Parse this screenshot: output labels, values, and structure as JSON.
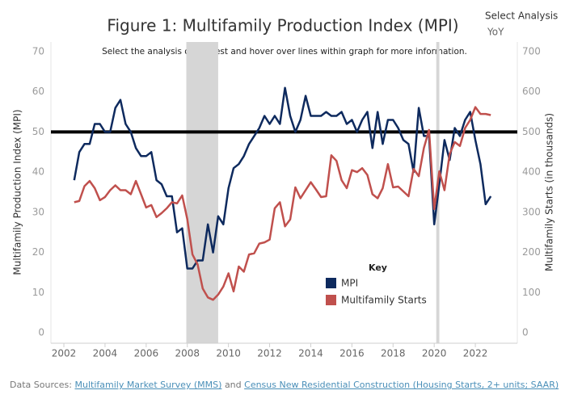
{
  "controls": {
    "label": "Select Analysis",
    "value": "YoY"
  },
  "chart_data": {
    "type": "line",
    "title": "Figure 1: Multifamily Production Index (MPI)",
    "subtitle": "Select the analysis of interest and hover over lines within graph for more information.",
    "y_label": "Multifamily Production Index (MPI)",
    "y2_label": "Multifamily Starts (in thousands)",
    "legend_title": "Key",
    "xlim": [
      2001.37,
      2024.04
    ],
    "xticks": [
      2002,
      2004,
      2006,
      2008,
      2010,
      2012,
      2014,
      2016,
      2018,
      2020,
      2022
    ],
    "ylim": [
      0,
      70
    ],
    "yticks": [
      0,
      10,
      20,
      30,
      40,
      50,
      60,
      70
    ],
    "y2lim": [
      0,
      700
    ],
    "y2ticks": [
      0,
      100,
      200,
      300,
      400,
      500,
      600,
      700
    ],
    "reference_line": 50,
    "shaded_ranges": [
      [
        2007.95,
        2009.5
      ],
      [
        2020.1,
        2020.25
      ]
    ],
    "x": [
      2002.5,
      2002.75,
      2003,
      2003.25,
      2003.5,
      2003.75,
      2004,
      2004.25,
      2004.5,
      2004.75,
      2005,
      2005.25,
      2005.5,
      2005.75,
      2006,
      2006.25,
      2006.5,
      2006.75,
      2007,
      2007.25,
      2007.5,
      2007.75,
      2008,
      2008.25,
      2008.5,
      2008.75,
      2009,
      2009.25,
      2009.5,
      2009.75,
      2010,
      2010.25,
      2010.5,
      2010.75,
      2011,
      2011.25,
      2011.5,
      2011.75,
      2012,
      2012.25,
      2012.5,
      2012.75,
      2013,
      2013.25,
      2013.5,
      2013.75,
      2014,
      2014.25,
      2014.5,
      2014.75,
      2015,
      2015.25,
      2015.5,
      2015.75,
      2016,
      2016.25,
      2016.5,
      2016.75,
      2017,
      2017.25,
      2017.5,
      2017.75,
      2018,
      2018.25,
      2018.5,
      2018.75,
      2019,
      2019.25,
      2019.5,
      2019.75,
      2020,
      2020.25,
      2020.5,
      2020.75,
      2021,
      2021.25,
      2021.5,
      2021.75,
      2022,
      2022.25,
      2022.5,
      2022.75
    ],
    "series": [
      {
        "name": "MPI",
        "color": "#0e2a5e",
        "axis": "y",
        "values": [
          38,
          45,
          47,
          47,
          52,
          52,
          50,
          50,
          56,
          58,
          52,
          50,
          46,
          44,
          44,
          45,
          38,
          37,
          34,
          34,
          25,
          26,
          16,
          16,
          18,
          18,
          27,
          20,
          29,
          27,
          36,
          41,
          42,
          44,
          47,
          49,
          51,
          54,
          52,
          54,
          52,
          61,
          54,
          50,
          53,
          59,
          54,
          54,
          54,
          55,
          54,
          54,
          55,
          52,
          53,
          50,
          53,
          55,
          46,
          55,
          47,
          53,
          53,
          51,
          48,
          47,
          40,
          56,
          49,
          49,
          27,
          37,
          48,
          43,
          51,
          49,
          53,
          55,
          48,
          42,
          32,
          34
        ]
      },
      {
        "name": "Multifamily Starts",
        "color": "#c0504d",
        "axis": "y2",
        "values": [
          325,
          328,
          365,
          378,
          360,
          330,
          338,
          355,
          367,
          355,
          355,
          345,
          378,
          345,
          312,
          318,
          288,
          298,
          310,
          325,
          322,
          342,
          283,
          195,
          170,
          110,
          88,
          82,
          95,
          115,
          148,
          103,
          165,
          152,
          195,
          198,
          222,
          225,
          232,
          310,
          325,
          265,
          282,
          362,
          335,
          355,
          375,
          357,
          338,
          340,
          442,
          428,
          380,
          360,
          405,
          400,
          410,
          393,
          345,
          335,
          360,
          420,
          362,
          364,
          352,
          340,
          408,
          390,
          460,
          505,
          308,
          402,
          355,
          445,
          475,
          465,
          510,
          530,
          562,
          545,
          545,
          542
        ]
      }
    ]
  },
  "footer": {
    "prefix": "Data Sources:",
    "links": [
      "Multifamily Market Survey (MMS)",
      "Census New Residential Construction (Housing Starts, 2+ units; SAAR)"
    ],
    "joiner": "and"
  }
}
